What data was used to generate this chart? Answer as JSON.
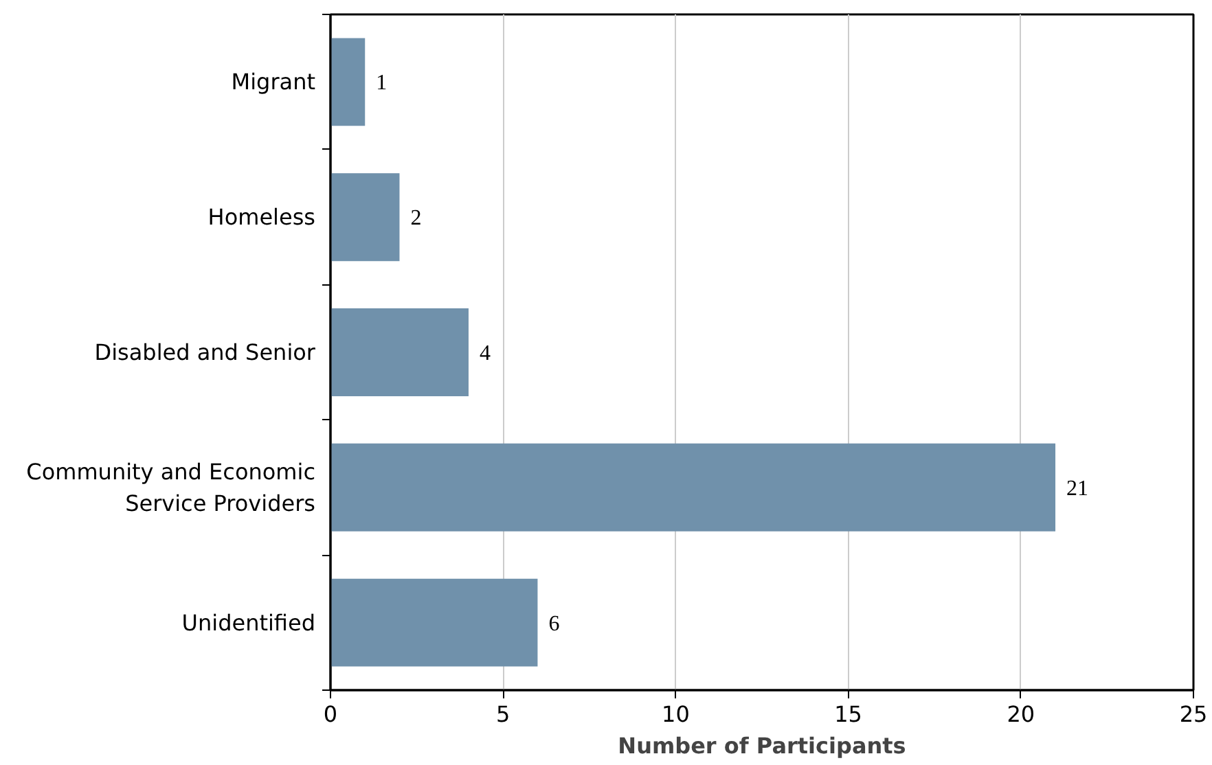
{
  "chart_data": {
    "type": "bar",
    "orientation": "horizontal",
    "categories": [
      "Migrant",
      "Homeless",
      "Disabled and Senior",
      "Community and Economic Service Providers",
      "Unidentified"
    ],
    "values": [
      1,
      2,
      4,
      21,
      6
    ],
    "color": "#7091ab",
    "xlabel": "Number of Participants",
    "xlim": [
      0,
      25
    ],
    "xticks": [
      0,
      5,
      10,
      15,
      20,
      25
    ],
    "grid": "x",
    "data_labels": true
  }
}
